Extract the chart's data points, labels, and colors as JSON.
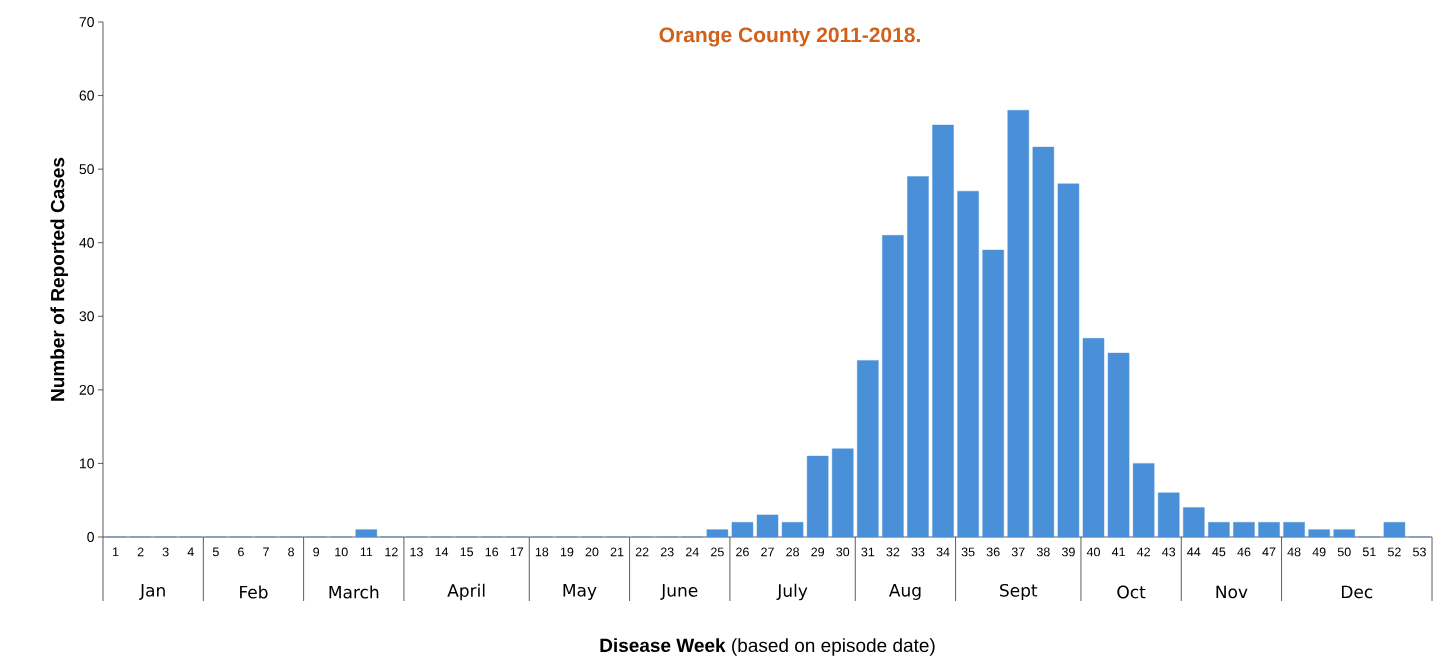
{
  "chart_data": {
    "type": "bar",
    "title": "Orange County 2011-2018.",
    "xlabel": "**Disease Week** (based on episode date)",
    "ylabel": "Number of Reported Cases",
    "categories": [
      "1",
      "2",
      "3",
      "4",
      "5",
      "6",
      "7",
      "8",
      "9",
      "10",
      "11",
      "12",
      "13",
      "14",
      "15",
      "16",
      "17",
      "18",
      "19",
      "20",
      "21",
      "22",
      "23",
      "24",
      "25",
      "26",
      "27",
      "28",
      "29",
      "30",
      "31",
      "32",
      "33",
      "34",
      "35",
      "36",
      "37",
      "38",
      "39",
      "40",
      "41",
      "42",
      "43",
      "44",
      "45",
      "46",
      "47",
      "48",
      "49",
      "50",
      "51",
      "52",
      "53"
    ],
    "values": [
      0,
      0,
      0,
      0,
      0,
      0,
      0,
      0,
      0,
      0,
      1,
      0,
      0,
      0,
      0,
      0,
      0,
      0,
      0,
      0,
      0,
      0,
      0,
      0,
      1,
      2,
      3,
      2,
      11,
      12,
      24,
      41,
      49,
      56,
      47,
      39,
      58,
      53,
      48,
      27,
      25,
      10,
      6,
      4,
      2,
      2,
      2,
      2,
      1,
      1,
      0,
      2,
      0
    ],
    "color": "#4a90d9",
    "ylim": [
      0,
      70
    ],
    "yticks": [
      0,
      10,
      20,
      30,
      40,
      50,
      60,
      70
    ],
    "grid": false,
    "annotations": [
      "Jan",
      "Feb",
      "March",
      "April",
      "May",
      "June",
      "July",
      "Aug",
      "Sept",
      "Oct",
      "Nov",
      "Dec"
    ]
  }
}
